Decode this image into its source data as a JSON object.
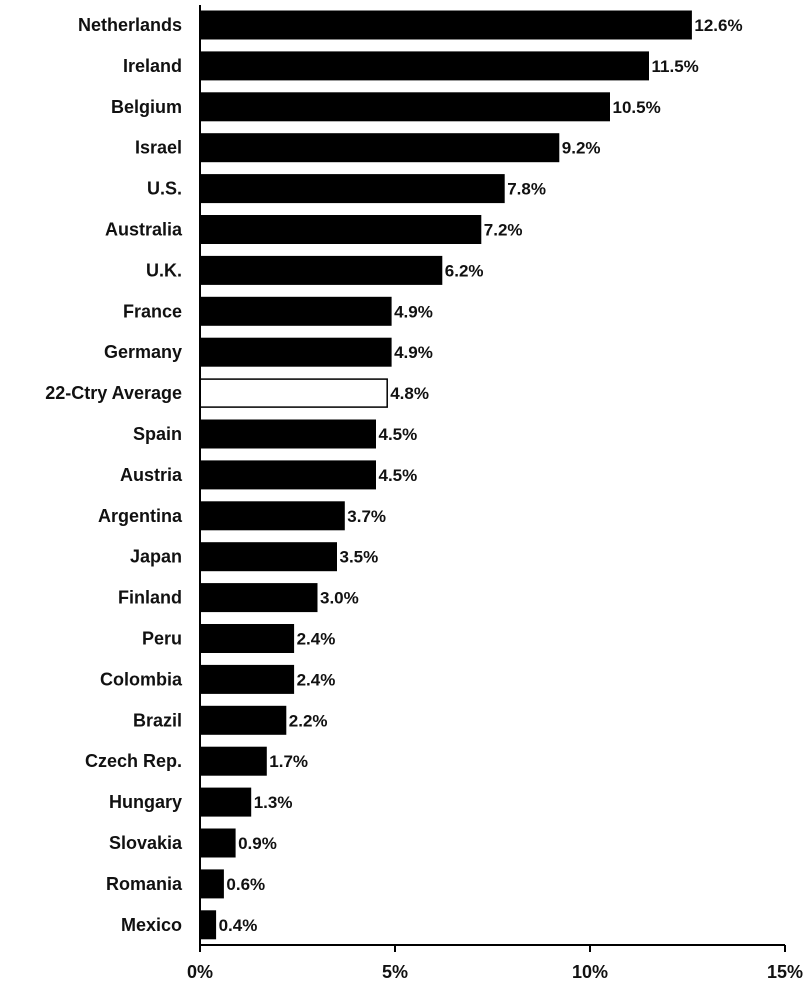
{
  "chart_data": {
    "type": "bar",
    "orientation": "horizontal",
    "title": "",
    "xlabel": "",
    "ylabel": "",
    "xlim": [
      0,
      15
    ],
    "x_ticks": [
      0,
      5,
      10,
      15
    ],
    "x_tick_labels": [
      "0%",
      "5%",
      "10%",
      "15%"
    ],
    "grid": false,
    "legend": "none",
    "categories": [
      "Netherlands",
      "Ireland",
      "Belgium",
      "Israel",
      "U.S.",
      "Australia",
      "U.K.",
      "France",
      "Germany",
      "22-Ctry Average",
      "Spain",
      "Austria",
      "Argentina",
      "Japan",
      "Finland",
      "Peru",
      "Colombia",
      "Brazil",
      "Czech Rep.",
      "Hungary",
      "Slovakia",
      "Romania",
      "Mexico"
    ],
    "values": [
      12.6,
      11.5,
      10.5,
      9.2,
      7.8,
      7.2,
      6.2,
      4.9,
      4.9,
      4.8,
      4.5,
      4.5,
      3.7,
      3.5,
      3.0,
      2.4,
      2.4,
      2.2,
      1.7,
      1.3,
      0.9,
      0.6,
      0.4
    ],
    "value_labels": [
      "12.6%",
      "11.5%",
      "10.5%",
      "9.2%",
      "7.8%",
      "7.2%",
      "6.2%",
      "4.9%",
      "4.9%",
      "4.8%",
      "4.5%",
      "4.5%",
      "3.7%",
      "3.5%",
      "3.0%",
      "2.4%",
      "2.4%",
      "2.2%",
      "1.7%",
      "1.3%",
      "0.9%",
      "0.6%",
      "0.4%"
    ],
    "bar_colors": {
      "default": "#000000",
      "highlight": "#ffffff"
    },
    "highlight_category": "22-Ctry Average"
  }
}
